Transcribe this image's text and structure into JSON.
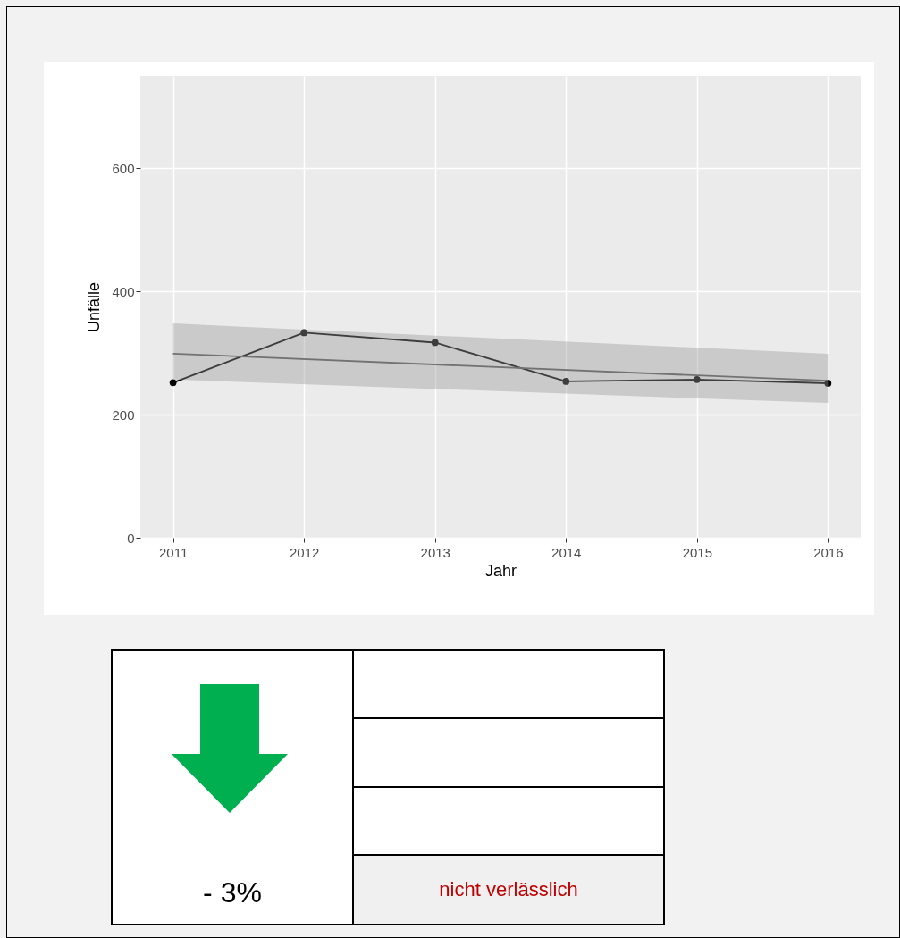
{
  "chart_data": {
    "type": "line",
    "xlabel": "Jahr",
    "ylabel": "Unfälle",
    "x": [
      2011,
      2012,
      2013,
      2014,
      2015,
      2016
    ],
    "series": [
      {
        "color": "#000000",
        "marker": "circle",
        "values": [
          252,
          333,
          317,
          254,
          257,
          251
        ]
      },
      {
        "type": "line",
        "color": "#595959",
        "x": [
          2011,
          2016
        ],
        "values": [
          299,
          255
        ],
        "lower": [
          257,
          219
        ],
        "upper": [
          348,
          299
        ]
      }
    ],
    "xlim": [
      2010.75,
      2016.25
    ],
    "xticks": [
      2011,
      2012,
      2013,
      2014,
      2015,
      2016
    ],
    "ylim": [
      0,
      750
    ],
    "yticks": [
      0,
      200,
      400,
      600
    ],
    "grid": true,
    "annotations": [
      "- 3%",
      "nicht verlässlich"
    ]
  }
}
